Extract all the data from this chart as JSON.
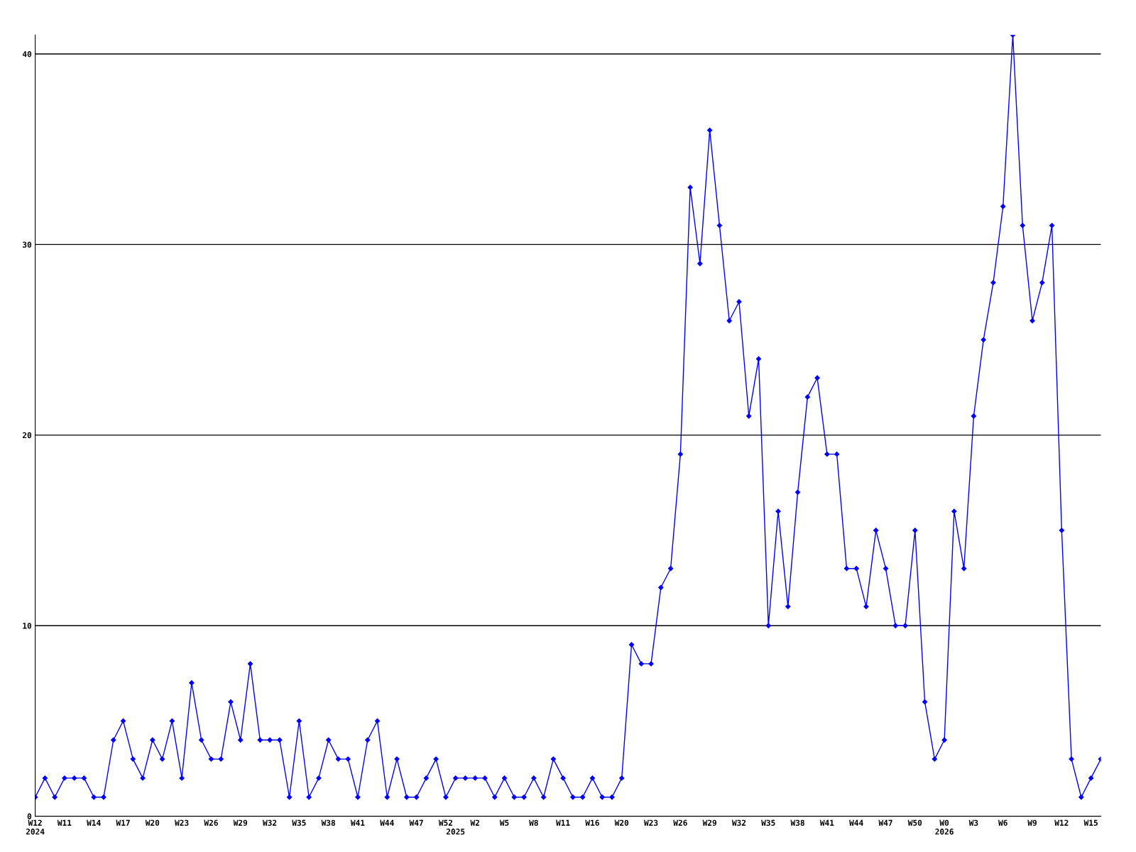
{
  "chart_data": {
    "type": "line",
    "categories": [
      "W12\n2024",
      null,
      null,
      "W11",
      null,
      null,
      "W14",
      null,
      null,
      "W17",
      null,
      null,
      "W20",
      null,
      null,
      "W23",
      null,
      null,
      "W26",
      null,
      null,
      "W29",
      null,
      null,
      "W32",
      null,
      null,
      "W35",
      null,
      null,
      "W38",
      null,
      null,
      "W41",
      null,
      null,
      "W44",
      null,
      null,
      "W47",
      null,
      null,
      "W52",
      "\n2025",
      null,
      "W2",
      null,
      null,
      "W5",
      null,
      null,
      "W8",
      null,
      null,
      "W11",
      null,
      null,
      "W16",
      null,
      null,
      "W20",
      null,
      null,
      "W23",
      null,
      null,
      "W26",
      null,
      null,
      "W29",
      null,
      null,
      "W32",
      null,
      null,
      "W35",
      null,
      null,
      "W38",
      null,
      null,
      "W41",
      null,
      null,
      "W44",
      null,
      null,
      "W47",
      null,
      null,
      "W50",
      null,
      null,
      "W0\n2026",
      null,
      null,
      "W3",
      null,
      null,
      "W6",
      null,
      null,
      "W9",
      null,
      null,
      "W12",
      null,
      null,
      "W15",
      null
    ],
    "series": [
      {
        "color": "#0000ff",
        "values": [
          1,
          2,
          1,
          2,
          2,
          2,
          1,
          1,
          4,
          5,
          3,
          2,
          4,
          3,
          5,
          2,
          7,
          4,
          3,
          3,
          6,
          4,
          8,
          4,
          4,
          4,
          1,
          5,
          1,
          2,
          4,
          3,
          3,
          1,
          4,
          5,
          1,
          3,
          1,
          1,
          2,
          3,
          1,
          2,
          2,
          2,
          2,
          1,
          2,
          1,
          1,
          2,
          1,
          3,
          2,
          1,
          1,
          2,
          1,
          1,
          2,
          9,
          8,
          8,
          12,
          13,
          19,
          33,
          29,
          36,
          31,
          26,
          27,
          21,
          24,
          10,
          16,
          11,
          17,
          22,
          23,
          19,
          19,
          13,
          13,
          11,
          15,
          13,
          10,
          10,
          15,
          6,
          3,
          4,
          16,
          13,
          21,
          25,
          28,
          32,
          41,
          31,
          26,
          28,
          31,
          15,
          3,
          1,
          2,
          3
        ]
      }
    ],
    "ylim": [
      0,
      41
    ],
    "yticks": [
      0,
      10,
      20,
      30,
      40
    ],
    "grid": "y",
    "marker": "diamond",
    "line_style": "solid",
    "legend": false
  }
}
